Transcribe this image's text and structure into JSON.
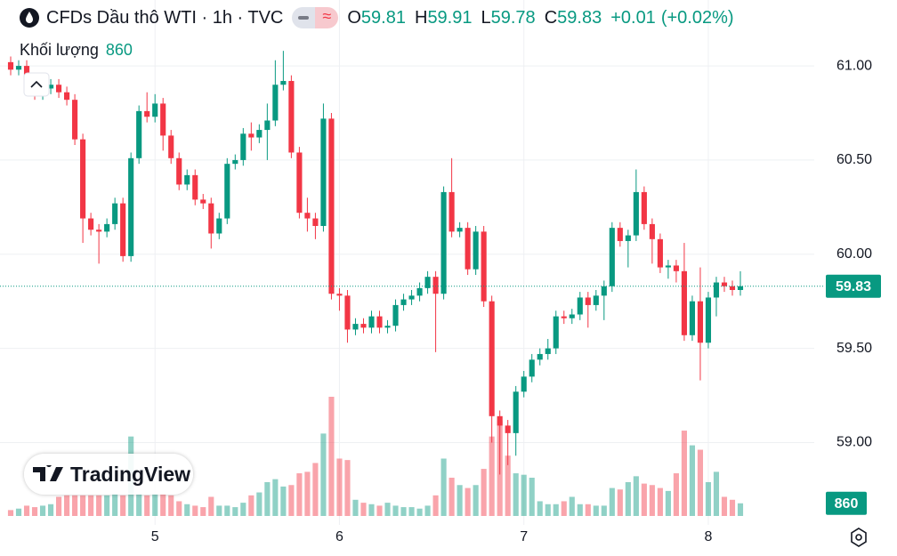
{
  "header": {
    "title": "CFDs Dầu thô WTI · 1h · TVC",
    "ohlc": [
      {
        "label": "O",
        "value": 59.81
      },
      {
        "label": "H",
        "value": 59.91
      },
      {
        "label": "L",
        "value": 59.78
      },
      {
        "label": "C",
        "value": 59.83
      }
    ],
    "change": {
      "value": 0.01,
      "label": "+0.01"
    },
    "change_pct": {
      "value": 0.02,
      "label": "(+0.02%)"
    },
    "volume_label": "Khối lượng",
    "volume_value": 860
  },
  "watermark": "TradingView",
  "chart_data": {
    "type": "candlestick",
    "categories": [
      null,
      null,
      null,
      null,
      null,
      null,
      null,
      null,
      null,
      null,
      null,
      null,
      null,
      null,
      null,
      null,
      null,
      null,
      "5",
      null,
      null,
      null,
      null,
      null,
      null,
      null,
      null,
      null,
      null,
      null,
      null,
      null,
      null,
      null,
      null,
      null,
      null,
      null,
      null,
      null,
      null,
      "6",
      null,
      null,
      null,
      null,
      null,
      null,
      null,
      null,
      null,
      null,
      null,
      null,
      null,
      null,
      null,
      null,
      null,
      null,
      null,
      null,
      null,
      null,
      "7",
      null,
      null,
      null,
      null,
      null,
      null,
      null,
      null,
      null,
      null,
      null,
      null,
      null,
      null,
      null,
      null,
      null,
      null,
      null,
      null,
      null,
      null,
      "8",
      null,
      null,
      null,
      null
    ],
    "open": [
      61.02,
      60.98,
      61.0,
      60.92,
      60.85,
      60.88,
      60.9,
      60.86,
      60.82,
      60.61,
      60.19,
      60.13,
      60.12,
      60.16,
      60.27,
      59.99,
      60.51,
      60.76,
      60.73,
      60.8,
      60.63,
      60.51,
      60.37,
      60.42,
      60.29,
      60.27,
      60.11,
      60.19,
      60.48,
      60.5,
      60.64,
      60.62,
      60.66,
      60.71,
      60.9,
      60.92,
      60.54,
      60.22,
      60.19,
      60.15,
      60.72,
      59.79,
      59.78,
      59.6,
      59.63,
      59.61,
      59.67,
      59.61,
      59.62,
      59.73,
      59.76,
      59.78,
      59.82,
      59.88,
      59.79,
      60.33,
      60.12,
      60.14,
      59.92,
      60.12,
      59.75,
      59.14,
      59.09,
      59.05,
      59.27,
      59.35,
      59.44,
      59.47,
      59.5,
      59.67,
      59.66,
      59.68,
      59.77,
      59.73,
      59.78,
      59.83,
      60.14,
      60.07,
      60.1,
      60.33,
      60.16,
      60.08,
      59.93,
      59.94,
      59.91,
      59.57,
      59.75,
      59.53,
      59.77,
      59.85,
      59.83,
      59.81
    ],
    "high": [
      61.05,
      61.03,
      61.03,
      60.95,
      60.91,
      60.93,
      60.93,
      60.89,
      60.85,
      60.64,
      60.22,
      60.16,
      60.19,
      60.3,
      60.3,
      60.54,
      60.79,
      60.86,
      60.85,
      60.83,
      60.66,
      60.54,
      60.45,
      60.45,
      60.32,
      60.3,
      60.22,
      60.51,
      60.53,
      60.67,
      60.7,
      60.69,
      60.8,
      61.03,
      61.08,
      60.95,
      60.57,
      60.3,
      60.22,
      60.8,
      60.75,
      59.82,
      59.81,
      59.66,
      59.66,
      59.7,
      59.7,
      59.65,
      59.76,
      59.79,
      59.81,
      59.85,
      59.91,
      59.91,
      60.36,
      60.51,
      60.17,
      60.17,
      60.15,
      60.15,
      59.78,
      59.17,
      59.12,
      59.3,
      59.38,
      59.47,
      59.5,
      59.55,
      59.7,
      59.7,
      59.71,
      59.8,
      59.8,
      59.81,
      59.86,
      60.17,
      60.17,
      60.13,
      60.45,
      60.36,
      60.19,
      60.11,
      59.97,
      59.97,
      60.06,
      59.78,
      59.93,
      59.8,
      59.88,
      59.88,
      59.86,
      59.91
    ],
    "low": [
      60.95,
      60.95,
      60.89,
      60.82,
      60.82,
      60.85,
      60.83,
      60.79,
      60.58,
      60.06,
      60.1,
      59.95,
      60.09,
      60.13,
      59.96,
      59.96,
      60.48,
      60.7,
      60.7,
      60.55,
      60.48,
      60.34,
      60.34,
      60.26,
      60.24,
      60.03,
      60.08,
      60.16,
      60.45,
      60.47,
      60.55,
      60.59,
      60.5,
      60.68,
      60.87,
      60.51,
      60.19,
      60.12,
      60.08,
      60.12,
      59.76,
      59.7,
      59.53,
      59.57,
      59.58,
      59.58,
      59.58,
      59.58,
      59.59,
      59.7,
      59.73,
      59.75,
      59.79,
      59.48,
      59.76,
      60.09,
      60.09,
      59.89,
      59.89,
      59.72,
      59.0,
      58.83,
      58.88,
      58.93,
      59.24,
      59.32,
      59.41,
      59.44,
      59.47,
      59.63,
      59.63,
      59.65,
      59.61,
      59.7,
      59.65,
      59.8,
      60.04,
      59.93,
      60.07,
      60.13,
      59.95,
      59.9,
      59.87,
      59.85,
      59.54,
      59.54,
      59.33,
      59.5,
      59.67,
      59.8,
      59.78,
      59.78
    ],
    "close": [
      60.98,
      61.0,
      60.92,
      60.85,
      60.88,
      60.9,
      60.86,
      60.82,
      60.61,
      60.19,
      60.13,
      60.12,
      60.16,
      60.27,
      59.99,
      60.51,
      60.76,
      60.73,
      60.8,
      60.63,
      60.51,
      60.37,
      60.42,
      60.29,
      60.27,
      60.11,
      60.19,
      60.48,
      60.5,
      60.64,
      60.62,
      60.66,
      60.71,
      60.9,
      60.92,
      60.54,
      60.22,
      60.19,
      60.15,
      60.72,
      59.79,
      59.78,
      59.6,
      59.63,
      59.61,
      59.67,
      59.61,
      59.62,
      59.73,
      59.76,
      59.78,
      59.82,
      59.88,
      59.79,
      60.33,
      60.12,
      60.14,
      59.92,
      60.12,
      59.75,
      59.14,
      59.09,
      59.05,
      59.27,
      59.35,
      59.44,
      59.47,
      59.5,
      59.67,
      59.66,
      59.68,
      59.77,
      59.73,
      59.78,
      59.83,
      60.14,
      60.07,
      60.1,
      60.33,
      60.16,
      60.08,
      59.93,
      59.94,
      59.91,
      59.57,
      59.75,
      59.53,
      59.77,
      59.85,
      59.83,
      59.81,
      59.83
    ],
    "volume": [
      400,
      500,
      700,
      600,
      700,
      800,
      1300,
      1400,
      1400,
      1400,
      1400,
      1400,
      1400,
      1500,
      1400,
      5400,
      1500,
      1400,
      1500,
      1500,
      1400,
      1000,
      800,
      700,
      600,
      1300,
      700,
      700,
      600,
      900,
      1400,
      1600,
      2300,
      2500,
      2000,
      2100,
      2900,
      3000,
      3600,
      5600,
      8100,
      3900,
      3800,
      1100,
      900,
      800,
      700,
      900,
      700,
      600,
      600,
      500,
      700,
      1400,
      3900,
      2600,
      2100,
      1900,
      2100,
      3200,
      5400,
      6500,
      4100,
      2900,
      2800,
      2600,
      1000,
      800,
      800,
      1000,
      1300,
      800,
      800,
      700,
      700,
      1900,
      1800,
      2300,
      2700,
      2200,
      2100,
      1900,
      1700,
      2900,
      5800,
      4800,
      4500,
      2300,
      3000,
      1300,
      1100,
      860
    ],
    "up_color": "#089981",
    "down_color": "#f23645",
    "ylim": [
      58.61,
      61.35
    ],
    "yticks": [
      {
        "value": 59,
        "label": "59.00"
      },
      {
        "value": 59.5,
        "label": "59.50"
      },
      {
        "value": 60,
        "label": "60.00"
      },
      {
        "value": 60.5,
        "label": "60.50"
      },
      {
        "value": 61,
        "label": "61.00"
      }
    ],
    "grid": true,
    "last_price": 59.83,
    "last_volume": 860
  }
}
